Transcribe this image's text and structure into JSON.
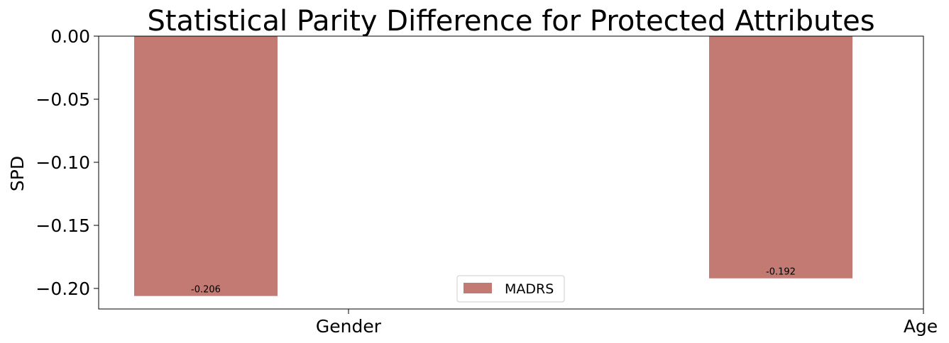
{
  "chart_data": {
    "type": "bar",
    "title": "Statistical Parity Difference for Protected Attributes",
    "xlabel": "",
    "ylabel": "SPD",
    "categories": [
      "Gender",
      "Age"
    ],
    "series": [
      {
        "name": "MADRS",
        "values": [
          -0.206,
          -0.192
        ],
        "value_labels": [
          "-0.206",
          "-0.192"
        ],
        "color": "#c27a73"
      }
    ],
    "y_ticks": [
      0.0,
      -0.05,
      -0.1,
      -0.15,
      -0.2
    ],
    "y_tick_labels": [
      "0.00",
      "−0.05",
      "−0.10",
      "−0.15",
      "−0.20"
    ],
    "ylim": [
      -0.2163,
      0.0
    ],
    "grid": false,
    "legend": "lower-center"
  }
}
